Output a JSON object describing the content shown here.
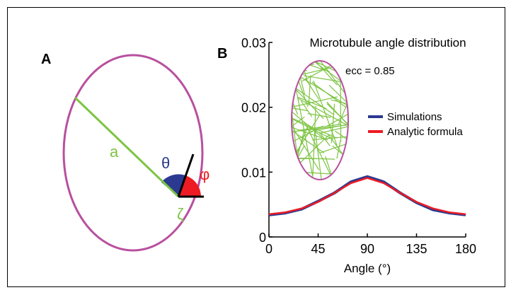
{
  "panel_a": {
    "label": "A",
    "a_label": "a",
    "theta_label": "θ",
    "phi_label": "φ",
    "zeta_label": "ζ",
    "colors": {
      "ellipse": "#b8509f",
      "line": "#7dc443",
      "theta_wedge": "#2b3990",
      "phi_wedge": "#ed1c24",
      "theta_text": "#2b3990",
      "phi_text": "#ed1c24"
    }
  },
  "panel_b": {
    "label": "B",
    "inset_annotation": "ecc = 0.85",
    "colors": {
      "inset_ellipse": "#b8509f",
      "inset_lines": "#7dc443"
    }
  },
  "chart_data": {
    "type": "line",
    "title": "Microtubule angle distribution",
    "xlabel": "Angle (°)",
    "ylabel": "",
    "xlim": [
      0,
      180
    ],
    "ylim": [
      0,
      0.03
    ],
    "xticks": [
      0,
      45,
      90,
      135,
      180
    ],
    "yticks": [
      0,
      0.01,
      0.02,
      0.03
    ],
    "ytick_labels": [
      "0",
      "0.01",
      "0.02",
      "0.03"
    ],
    "legend_position": "center-right",
    "series": [
      {
        "name": "Simulations",
        "color": "#2b3990",
        "x": [
          0,
          15,
          30,
          45,
          60,
          75,
          90,
          105,
          120,
          135,
          150,
          165,
          180
        ],
        "y": [
          0.0034,
          0.0037,
          0.0043,
          0.0055,
          0.0068,
          0.0085,
          0.0093,
          0.0085,
          0.0068,
          0.0053,
          0.0042,
          0.0037,
          0.0034
        ]
      },
      {
        "name": "Analytic formula",
        "color": "#ed1c24",
        "x": [
          0,
          15,
          30,
          45,
          60,
          75,
          90,
          105,
          120,
          135,
          150,
          165,
          180
        ],
        "y": [
          0.0035,
          0.0038,
          0.0044,
          0.0054,
          0.0068,
          0.0083,
          0.0091,
          0.0083,
          0.0068,
          0.0054,
          0.0044,
          0.0038,
          0.0035
        ]
      }
    ]
  }
}
